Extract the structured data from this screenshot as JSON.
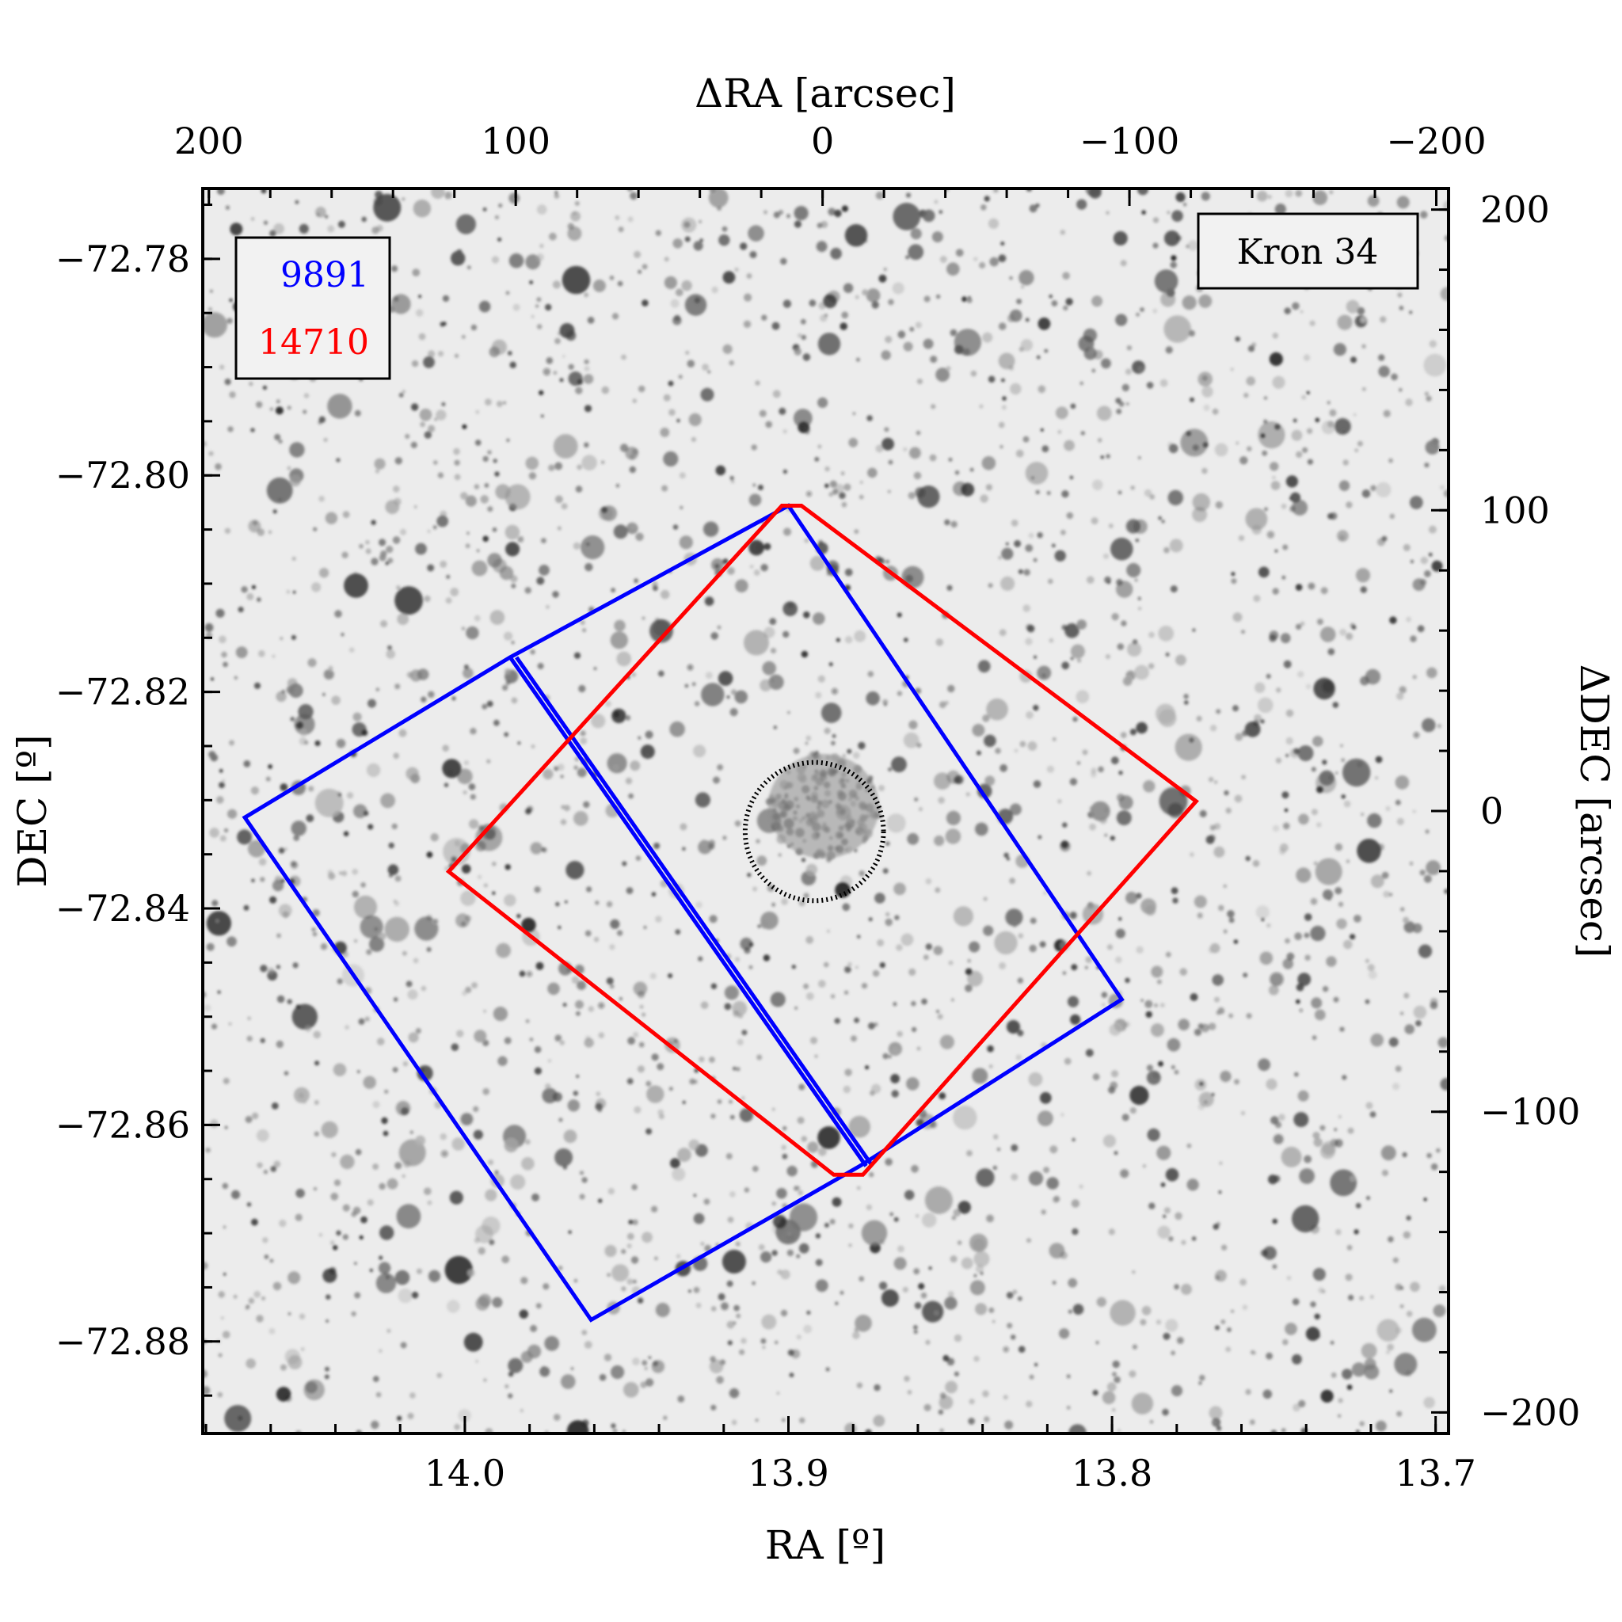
{
  "chart_data": {
    "type": "scatter",
    "title": "",
    "target_label": "Kron 34",
    "xlabel": "RA [º]",
    "ylabel": "DEC [º]",
    "x2label": "ΔRA [arcsec]",
    "y2label": "ΔDEC [arcsec]",
    "xlim": [
      14.081,
      13.696
    ],
    "ylim": [
      -72.8885,
      -72.7735
    ],
    "x2lim": [
      202,
      -204
    ],
    "y2lim": [
      -207,
      207
    ],
    "x_ticks": [
      14.0,
      13.9,
      13.8,
      13.7
    ],
    "x_tick_labels": [
      "14.0",
      "13.9",
      "13.8",
      "13.7"
    ],
    "y_ticks": [
      -72.78,
      -72.8,
      -72.82,
      -72.84,
      -72.86,
      -72.88
    ],
    "y_tick_labels": [
      "−72.78",
      "−72.80",
      "−72.82",
      "−72.84",
      "−72.86",
      "−72.88"
    ],
    "x2_ticks": [
      200,
      100,
      0,
      -100,
      -200
    ],
    "x2_tick_labels": [
      "200",
      "100",
      "0",
      "−100",
      "−200"
    ],
    "y2_ticks": [
      200,
      100,
      0,
      -100,
      -200
    ],
    "y2_tick_labels": [
      "200",
      "100",
      "0",
      "−100",
      "−200"
    ],
    "background": "greyscale stellar field (inverted)",
    "legend": {
      "position": "top-left",
      "entries": [
        {
          "label": "9891",
          "color": "#0000ff"
        },
        {
          "label": "14710",
          "color": "#ff0000"
        }
      ]
    },
    "series": [
      {
        "name": "9891",
        "color": "#0000ff",
        "shape": "polygon",
        "points": [
          [
            13.9,
            -72.8028
          ],
          [
            13.986,
            -72.8168
          ],
          [
            14.068,
            -72.8316
          ],
          [
            13.961,
            -72.878
          ],
          [
            13.878,
            -72.8638
          ],
          [
            13.797,
            -72.8484
          ]
        ],
        "chip_gap": [
          [
            13.986,
            -72.8168
          ],
          [
            13.876,
            -72.8638
          ]
        ]
      },
      {
        "name": "14710",
        "color": "#ff0000",
        "shape": "polygon",
        "points": [
          [
            13.902,
            -72.8028
          ],
          [
            13.896,
            -72.8028
          ],
          [
            13.774,
            -72.8301
          ],
          [
            13.877,
            -72.8646
          ],
          [
            13.886,
            -72.8646
          ],
          [
            14.005,
            -72.8366
          ]
        ]
      }
    ],
    "annotations": [
      {
        "type": "circle",
        "label": "cluster radius",
        "center": [
          13.892,
          -72.8329
        ],
        "radius_arcsec": 23,
        "style": "dotted",
        "color": "#000000"
      }
    ]
  }
}
